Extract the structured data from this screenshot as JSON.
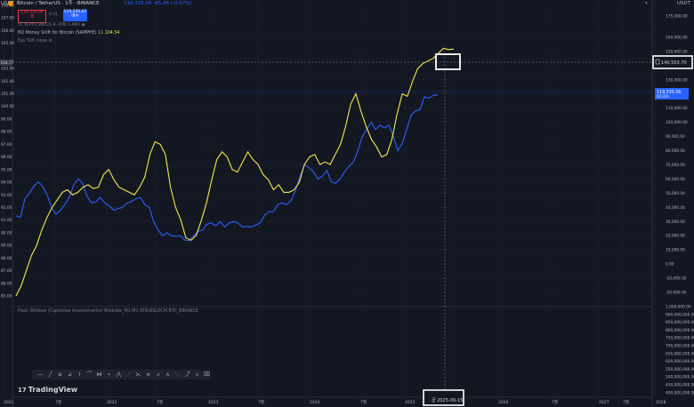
{
  "header": {
    "symbol": "Bitcoin / TetherUS · 1주 · BINANCE",
    "ohlc": "119,335.06 -85.46 (-0.07%)",
    "quote_currency": "USDT",
    "left_currency": "USDT"
  },
  "trade": {
    "sell_price": "119,335.06",
    "sell_label": "매",
    "spread": "0.01",
    "buy_price": "119,335.07",
    "buy_label": "매수"
  },
  "indicators": [
    {
      "label": "TC (CPI:CSNCLS 4 -OW 1.4W)",
      "value": ""
    },
    {
      "label": "M2 Money Shift for Bitcoin (SAMPHE) 11",
      "value": "104.54"
    },
    {
      "label": "Eas 506 close",
      "value": ""
    }
  ],
  "lower_pane_label": "Hack Wildesq (Capitalise Investements) Wildside_M1-M1-RTR-BSLDCM BTC_BINANCE",
  "price_labels": {
    "crosshair": "140,503.70",
    "current": "119,335.06",
    "current_sub": "60:22h",
    "left_crosshair": "104.77"
  },
  "date_label": "금 2025-09-15",
  "left_axis": [
    "108.00",
    "107.00",
    "106.00",
    "105.00",
    "104.77",
    "103.00",
    "102.00",
    "101.00",
    "100.00",
    "99.00",
    "98.00",
    "97.00",
    "96.00",
    "95.00",
    "94.00",
    "93.00",
    "92.00",
    "91.00",
    "90.00",
    "89.00",
    "88.00",
    "87.00",
    "86.00",
    "85.00"
  ],
  "right_axis": [
    "175,000.00",
    "160,000.00",
    "150,000.00",
    "140,000.00",
    "130,000.00",
    "120,000.00",
    "110,000.00",
    "100,000.00",
    "90,000.00",
    "80,000.00",
    "70,000.00",
    "60,000.00",
    "50,000.00",
    "40,000.00",
    "30,000.00",
    "20,000.00",
    "10,000.00",
    "0.00",
    "-10,000.00",
    "-20,000.00"
  ],
  "right_axis_lower": [
    "1,000,000.00",
    "900,000,000.00",
    "850,000,000.00",
    "800,000,000.00",
    "750,000,000.00",
    "700,000,000.00",
    "650,000,000.00",
    "600,000,000.00",
    "550,000,000.00",
    "500,000,000.00",
    "450,000,000.00",
    "400,000,000.00"
  ],
  "x_axis": [
    "2021",
    "7월",
    "2022",
    "7월",
    "2023",
    "7월",
    "2024",
    "7월",
    "2025",
    "7월",
    "2026",
    "7월",
    "2027",
    "7월",
    "2028"
  ],
  "toolbar": [
    "—",
    "╱",
    "≡",
    "⊿",
    "⌇",
    "⌒",
    "⋈",
    "⌁",
    "⋀",
    "⋰",
    "⋋",
    "⌆",
    "⩘",
    "⋏",
    "⋱",
    "⤴",
    "⌅",
    "⌧"
  ],
  "logo": "TradingView",
  "logo_mark": "17",
  "colors": {
    "bg": "#131722",
    "btc": "#2962ff",
    "m2": "#f6e94a",
    "grid": "#1e2230"
  },
  "chart_data": {
    "type": "line",
    "x_start": "2021-01",
    "x_end": "2025-09",
    "series": [
      {
        "name": "",
        "axis": "right",
        "values": [
          34000,
          33000,
          46000,
          50000,
          55000,
          58000,
          55000,
          49000,
          40000,
          35000,
          38000,
          42000,
          47000,
          56000,
          60000,
          57000,
          48000,
          43000,
          44000,
          47000,
          43000,
          41000,
          38000,
          39000,
          40000,
          43000,
          44000,
          46000,
          47000,
          42000,
          40000,
          30000,
          24000,
          20000,
          22000,
          20000,
          19500,
          20000,
          17000,
          16500,
          20000,
          23000,
          24000,
          28000,
          29000,
          27000,
          30000,
          26000,
          29000,
          30000,
          29000,
          26000,
          26500,
          26000,
          27500,
          29000,
          34500,
          37000,
          37000,
          42000,
          43000,
          42000,
          45000,
          52000,
          62000,
          70000,
          68000,
          65000,
          60000,
          62000,
          66000,
          58000,
          57000,
          60000,
          65000,
          69000,
          72000,
          80000,
          90000,
          95000,
          100000,
          95000,
          98000,
          96000,
          98000,
          90000,
          80000,
          85000,
          95000,
          105000,
          108000,
          109000,
          118000,
          117000,
          119000,
          119335
        ]
      },
      {
        "name": "",
        "axis": "left",
        "values": [
          85.0,
          85.8,
          87.0,
          88.2,
          89.0,
          90.2,
          91.2,
          92.0,
          92.6,
          93.2,
          93.4,
          93.0,
          93.2,
          93.6,
          93.8,
          93.5,
          93.6,
          94.6,
          95.0,
          94.2,
          93.6,
          93.4,
          93.2,
          93.0,
          93.6,
          94.4,
          96.2,
          97.2,
          97.0,
          96.2,
          93.6,
          92.0,
          91.0,
          89.6,
          89.4,
          89.8,
          91.0,
          92.4,
          94.2,
          95.8,
          96.4,
          96.0,
          95.0,
          94.8,
          95.6,
          96.4,
          95.8,
          95.4,
          94.6,
          94.2,
          93.4,
          93.8,
          93.2,
          93.2,
          93.4,
          94.0,
          95.4,
          96.0,
          96.2,
          95.4,
          95.6,
          95.4,
          96.2,
          97.0,
          98.4,
          100.2,
          101.0,
          99.6,
          98.4,
          97.4,
          96.8,
          96.0,
          96.2,
          97.4,
          99.4,
          101.0,
          100.8,
          102.0,
          103.0,
          103.4,
          103.6,
          103.8,
          104.2,
          104.6,
          104.5,
          104.54
        ]
      }
    ],
    "right_ylim": [
      -25000,
      180000
    ],
    "left_ylim": [
      84.5,
      108.5
    ],
    "grid": true
  }
}
